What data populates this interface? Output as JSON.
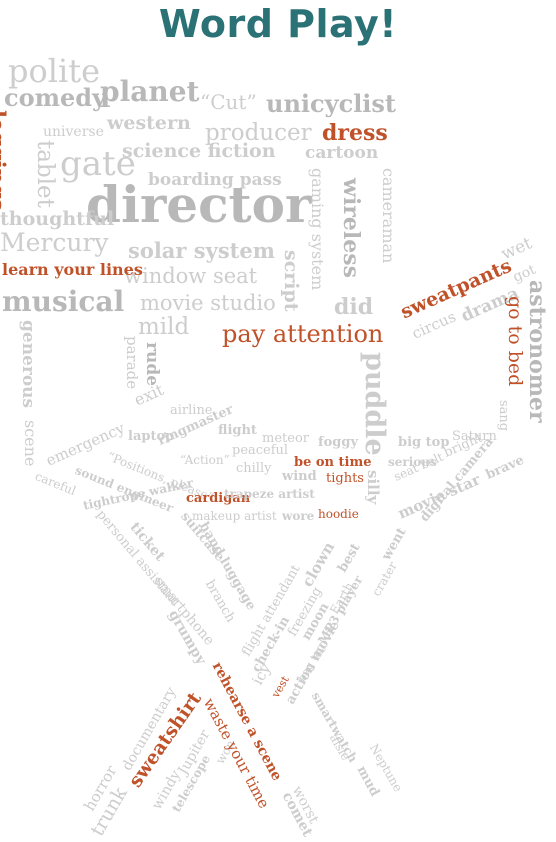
{
  "title": "Word Play!",
  "colors": {
    "title": "#2a7276",
    "light": "#cdcdcd",
    "mid": "#b8b8b8",
    "accent": "#c0522a"
  },
  "words": [
    "polite",
    "planet",
    "“Cut”",
    "unicyclist",
    "comedy",
    "western",
    "producer",
    "dress",
    "leggings",
    "universe",
    "science fiction",
    "tablet",
    "gate",
    "cartoon",
    "boarding pass",
    "director",
    "gaming system",
    "wireless",
    "cameraman",
    "thoughtful",
    "solar system",
    "Mercury",
    "window seat",
    "script",
    "learn your lines",
    "movie studio",
    "sweatpants",
    "wet",
    "got",
    "astronomer",
    "musical",
    "mild",
    "pay attention",
    "did",
    "circus",
    "drama",
    "go to bed",
    "generous",
    "parade",
    "rude",
    "puddle",
    "scene",
    "exit",
    "airline",
    "flight",
    "meteor",
    "foggy",
    "big top",
    "Saturn",
    "sang",
    "emergency",
    "ringmaster",
    "“Action”",
    "peaceful",
    "be on time",
    "serious",
    "bright",
    "laptop",
    "“Positions, please”",
    "chilly",
    "wind",
    "tights",
    "seat belt",
    "brave",
    "sound engineer",
    "cardigan",
    "trapeze artist",
    "silly",
    "movie star",
    "careful",
    "tightrope walker",
    "makeup artist",
    "wore",
    "hoodie",
    "digital camera",
    "personal assistant",
    "ticket",
    "smartphone",
    "suitcase",
    "branch",
    "hand luggage",
    "flight attendant",
    "clown",
    "best",
    "went",
    "freezing",
    "Earth",
    "crater",
    "moon",
    "check-in",
    "MP3 player",
    "grumpy",
    "icy",
    "bag tag",
    "vest",
    "action movie",
    "smartwatch",
    "aisle",
    "Neptune",
    "horror",
    "documentary",
    "sweatshirt",
    "rehearse a scene",
    "windy",
    "Jupiter",
    "won",
    "trunk",
    "telescope",
    "waste your time",
    "worst",
    "mud",
    "comet"
  ]
}
